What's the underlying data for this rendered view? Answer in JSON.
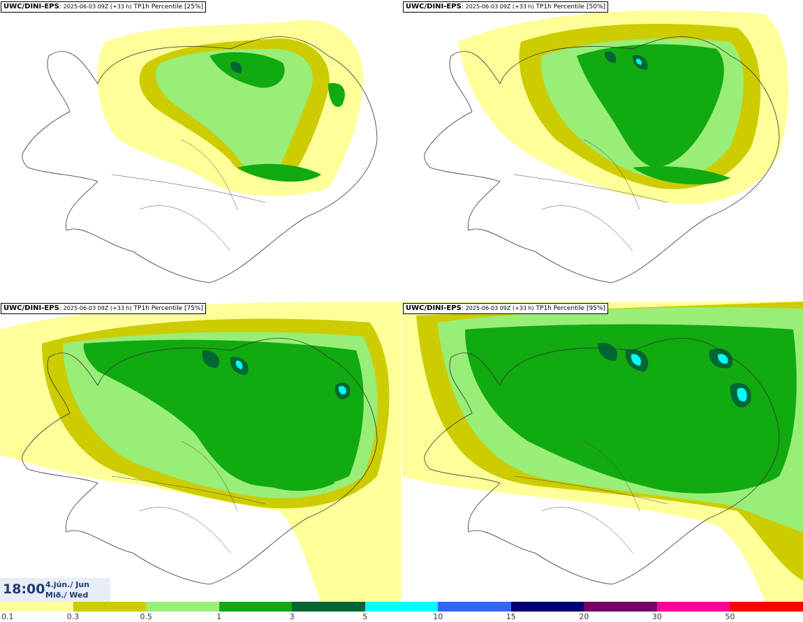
{
  "panels": [
    {
      "model": "UWC/DINI-EPS",
      "run": "2025-06-03 09Z (+33 h)",
      "field": "TP1h Percentile [25%]"
    },
    {
      "model": "UWC/DINI-EPS",
      "run": "2025-06-03 09Z (+33 h)",
      "field": "TP1h Percentile [50%]"
    },
    {
      "model": "UWC/DINI-EPS",
      "run": "2025-06-03 09Z (+33 h)",
      "field": "TP1h Percentile [75%]"
    },
    {
      "model": "UWC/DINI-EPS",
      "run": "2025-06-03 09Z (+33 h)",
      "field": "TP1h Percentile [95%]"
    }
  ],
  "valid_time": {
    "time": "18:00",
    "date_line1": "4.jún./ Jun",
    "date_line2": "Mið./ Wed"
  },
  "legend": {
    "colors": [
      "#ffff99",
      "#cccc00",
      "#99ee77",
      "#11aa11",
      "#006633",
      "#00ffff",
      "#3366ff",
      "#000077",
      "#770066",
      "#ff0099",
      "#ff0000"
    ],
    "labels": [
      "0.1",
      "0.3",
      "0.5",
      "1",
      "3",
      "5",
      "10",
      "15",
      "20",
      "30",
      "50"
    ]
  }
}
